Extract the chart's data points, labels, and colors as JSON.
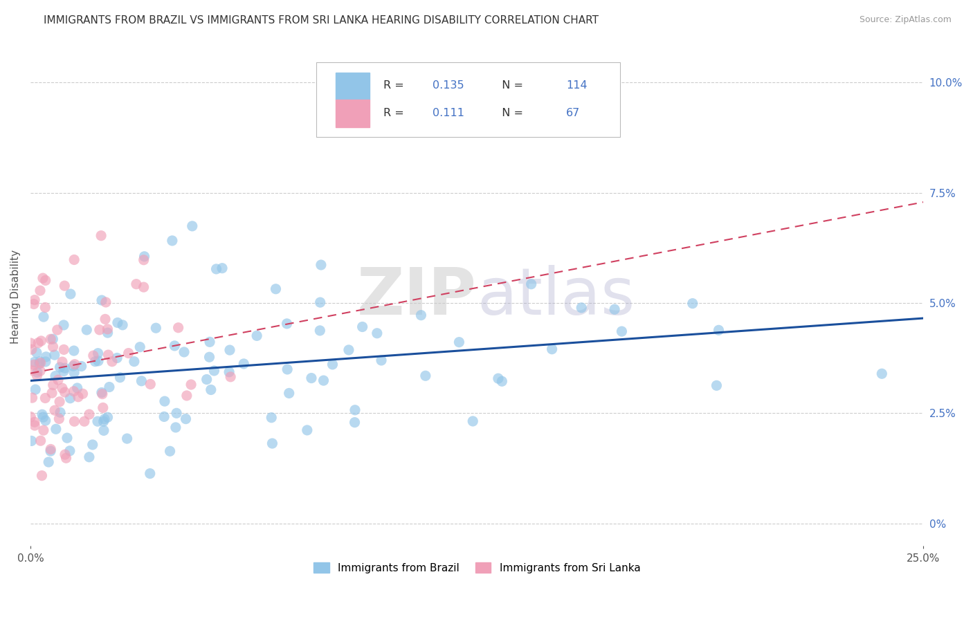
{
  "title": "IMMIGRANTS FROM BRAZIL VS IMMIGRANTS FROM SRI LANKA HEARING DISABILITY CORRELATION CHART",
  "source": "Source: ZipAtlas.com",
  "ylabel_label": "Hearing Disability",
  "right_yticks": [
    0.0,
    0.025,
    0.05,
    0.075,
    0.1
  ],
  "right_ytick_labels": [
    "0%",
    "2.5%",
    "5.0%",
    "7.5%",
    "10.0%"
  ],
  "xlim": [
    0.0,
    0.25
  ],
  "ylim": [
    -0.005,
    0.108
  ],
  "brazil_color": "#92C5E8",
  "brazil_color_line": "#1A4F9C",
  "srilanka_color": "#F0A0B8",
  "srilanka_color_line": "#D04060",
  "brazil_R": 0.135,
  "brazil_N": 114,
  "srilanka_R": 0.111,
  "srilanka_N": 67,
  "watermark_zip": "ZIP",
  "watermark_atlas": "atlas",
  "background_color": "#FFFFFF",
  "legend_brazil_label": "Immigrants from Brazil",
  "legend_srilanka_label": "Immigrants from Sri Lanka",
  "brazil_seed": 42,
  "srilanka_seed": 99
}
